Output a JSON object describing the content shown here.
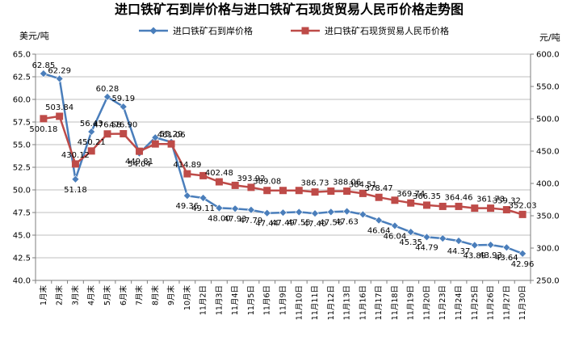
{
  "chart_data": {
    "type": "line",
    "title": "进口铁矿石到岸价格与进口铁矿石现货贸易人民币价格走势图",
    "y_left_unit": "美元/吨",
    "y_right_unit": "元/吨",
    "y_left_range": [
      40.0,
      65.0
    ],
    "y_left_ticks": [
      "40.0",
      "42.5",
      "45.0",
      "47.5",
      "50.0",
      "52.5",
      "55.0",
      "57.5",
      "60.0",
      "62.5",
      "65.0"
    ],
    "y_right_range": [
      250.0,
      600.0
    ],
    "y_right_ticks": [
      "250.0",
      "300.0",
      "350.0",
      "400.0",
      "450.0",
      "500.0",
      "550.0",
      "600.0"
    ],
    "categories": [
      "1月末",
      "2月末",
      "3月末",
      "4月末",
      "5月末",
      "6月末",
      "7月末",
      "8月末",
      "9月末",
      "10月末",
      "11月2日",
      "11月3日",
      "11月4日",
      "11月5日",
      "11月6日",
      "11月9日",
      "11月10日",
      "11月11日",
      "11月12日",
      "11月13日",
      "11月16日",
      "11月17日",
      "11月18日",
      "11月19日",
      "11月20日",
      "11月23日",
      "11月24日",
      "11月25日",
      "11月26日",
      "11月27日",
      "11月30日"
    ],
    "legend_position": "top",
    "grid": "horizontal",
    "series": [
      {
        "name": "进口铁矿石到岸价格",
        "axis": "left",
        "color": "#4A7EBB",
        "marker": "diamond",
        "values": [
          62.85,
          62.29,
          51.18,
          56.43,
          60.28,
          59.19,
          54.04,
          55.79,
          55.29,
          49.36,
          49.11,
          48.0,
          47.93,
          47.79,
          47.44,
          47.49,
          47.55,
          47.4,
          47.56,
          47.63,
          47.29,
          46.64,
          46.04,
          45.35,
          44.79,
          44.64,
          44.37,
          43.89,
          43.93,
          43.64,
          42.96
        ],
        "labels": [
          "62.85",
          "62.29",
          "51.18",
          "56.43",
          "60.28",
          "59.19",
          "54.04",
          "",
          "55.29",
          "49.36",
          "49.11",
          "48.00",
          "47.93",
          "47.79",
          "47.44",
          "47.49",
          "47.55",
          "47.40",
          "47.56",
          "47.63",
          "",
          "46.64",
          "46.04",
          "45.35",
          "44.79",
          "",
          "44.37",
          "43.89",
          "43.93",
          "43.64",
          "42.96"
        ]
      },
      {
        "name": "进口铁矿石现货贸易人民币价格",
        "axis": "right",
        "color": "#BE4B48",
        "marker": "square",
        "values": [
          500.18,
          503.84,
          430.12,
          450.21,
          476.58,
          476.9,
          449.81,
          461.06,
          461.06,
          414.89,
          412.0,
          402.48,
          397.0,
          393.92,
          389.08,
          389.08,
          389.08,
          386.73,
          388.06,
          388.06,
          384.51,
          378.47,
          374.0,
          369.74,
          366.35,
          364.46,
          364.46,
          361.73,
          361.73,
          359.32,
          352.03
        ],
        "labels": [
          "500.18",
          "503.84",
          "430.12",
          "450.21",
          "476.58",
          "476.90",
          "449.81",
          "",
          "461.06",
          "414.89",
          "",
          "402.48",
          "",
          "393.92",
          "389.08",
          "",
          "",
          "386.73",
          "",
          "388.06",
          "384.51",
          "378.47",
          "",
          "369.74",
          "366.35",
          "",
          "364.46",
          "",
          "361.73",
          "359.32",
          "352.03"
        ]
      }
    ]
  }
}
